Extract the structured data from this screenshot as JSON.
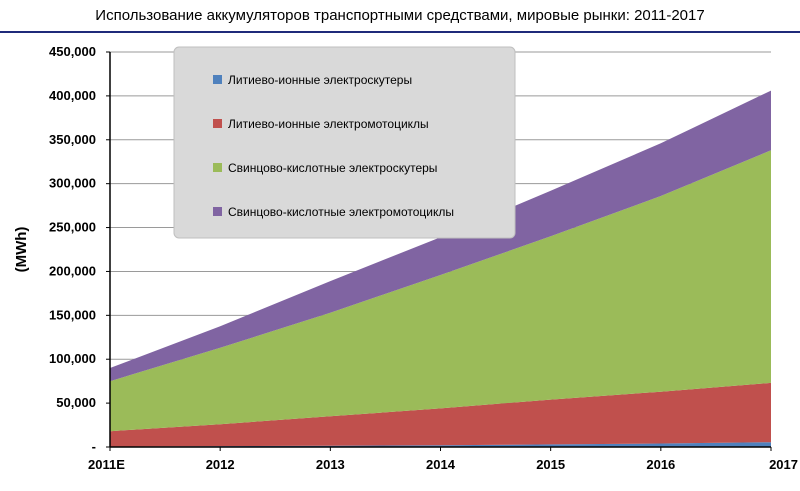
{
  "chart_data": {
    "type": "area",
    "stacked": true,
    "title": "Использование аккумуляторов транспортными средствами, мировые рынки: 2011-2017",
    "ylabel": "(MWh)",
    "xlabel": "",
    "categories": [
      "2011E",
      "2012",
      "2013",
      "2014",
      "2015",
      "2016",
      "2017"
    ],
    "ylim": [
      0,
      450000
    ],
    "yticks": [
      0,
      50000,
      100000,
      150000,
      200000,
      250000,
      300000,
      350000,
      400000,
      450000
    ],
    "ytick_labels": [
      "-",
      "50,000",
      "100,000",
      "150,000",
      "200,000",
      "250,000",
      "300,000",
      "350,000",
      "400,000",
      "450,000"
    ],
    "grid": "horizontal",
    "legend_position": "top-left",
    "series": [
      {
        "name": "Литиево-ионные электроскутеры",
        "color": "#4f81bd",
        "values": [
          500,
          1000,
          1500,
          2000,
          3000,
          4000,
          5500
        ]
      },
      {
        "name": "Литиево-ионные электромотоциклы",
        "color": "#c0504d",
        "values": [
          17500,
          25000,
          33500,
          42000,
          51000,
          59000,
          67500
        ]
      },
      {
        "name": "Свинцово-кислотные электроскутеры",
        "color": "#9bbb59",
        "values": [
          57000,
          87000,
          118000,
          152000,
          186000,
          223000,
          265000
        ]
      },
      {
        "name": "Свинцово-кислотные электромотоциклы",
        "color": "#8064a2",
        "values": [
          15000,
          24500,
          36000,
          43000,
          52000,
          60000,
          68000
        ]
      }
    ]
  }
}
